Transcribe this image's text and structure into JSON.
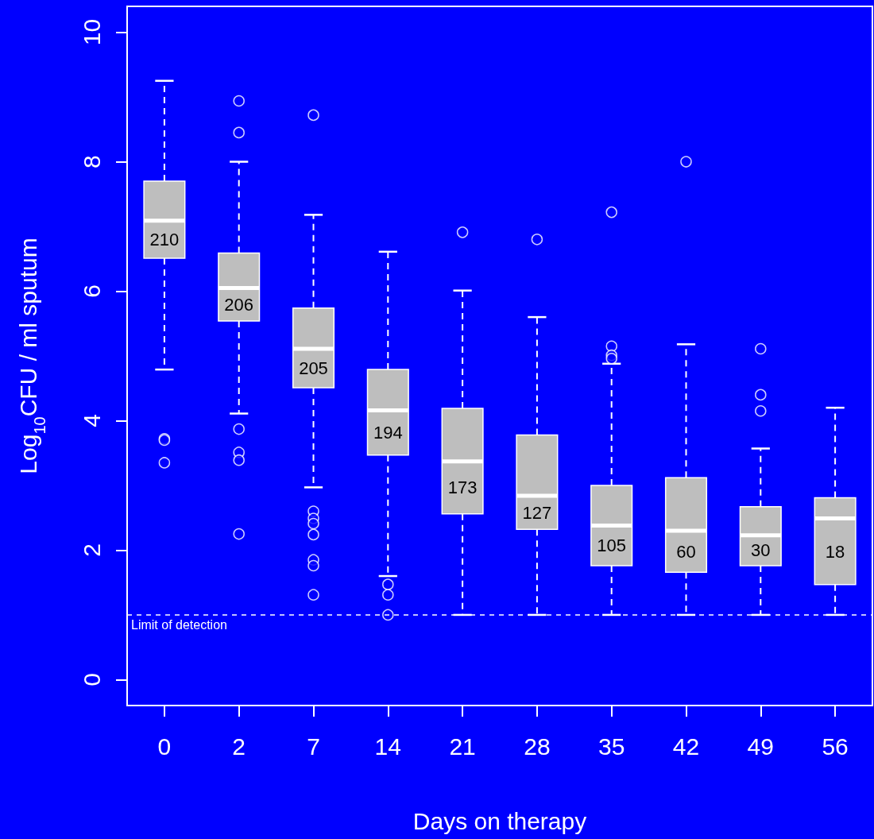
{
  "chart_data": {
    "type": "box",
    "xlabel": "Days on therapy",
    "ylabel": "Log$_{10}$CFU / ml sputum",
    "categories": [
      "0",
      "2",
      "7",
      "14",
      "21",
      "28",
      "35",
      "42",
      "49",
      "56"
    ],
    "color": "#bebebe",
    "boxes": [
      {
        "low": 4.79,
        "q1": 6.51,
        "median": 7.09,
        "q3": 7.7,
        "high": 9.25,
        "outliers": [
          3.72,
          3.7,
          3.35
        ]
      },
      {
        "low": 4.11,
        "q1": 5.54,
        "median": 6.05,
        "q3": 6.59,
        "high": 8.0,
        "outliers": [
          8.94,
          8.45,
          3.87,
          3.51,
          3.39,
          2.25
        ]
      },
      {
        "low": 2.97,
        "q1": 4.51,
        "median": 5.11,
        "q3": 5.74,
        "high": 7.18,
        "outliers": [
          8.72,
          2.6,
          2.49,
          2.41,
          2.24,
          1.85,
          1.76,
          1.31
        ]
      },
      {
        "low": 1.6,
        "q1": 3.47,
        "median": 4.16,
        "q3": 4.79,
        "high": 6.61,
        "outliers": [
          1.47,
          1.31,
          1.0
        ]
      },
      {
        "low": 1.0,
        "q1": 2.56,
        "median": 3.37,
        "q3": 4.19,
        "high": 6.01,
        "outliers": [
          6.91
        ]
      },
      {
        "low": 1.0,
        "q1": 2.32,
        "median": 2.84,
        "q3": 3.78,
        "high": 5.6,
        "outliers": [
          6.8
        ]
      },
      {
        "low": 1.0,
        "q1": 1.76,
        "median": 2.38,
        "q3": 3.0,
        "high": 4.88,
        "outliers": [
          7.22,
          5.15,
          5.01,
          4.96
        ]
      },
      {
        "low": 1.0,
        "q1": 1.66,
        "median": 2.3,
        "q3": 3.12,
        "high": 5.18,
        "outliers": [
          8.0
        ]
      },
      {
        "low": 1.0,
        "q1": 1.76,
        "median": 2.23,
        "q3": 2.67,
        "high": 3.57,
        "outliers": [
          5.11,
          4.4,
          4.15
        ]
      },
      {
        "low": 1.0,
        "q1": 1.47,
        "median": 2.49,
        "q3": 2.81,
        "high": 4.2
      }
    ],
    "ylim": [
      -0.4,
      10.4
    ],
    "yticks": [
      0,
      2,
      4,
      6,
      8,
      10
    ],
    "ref_lines": [
      {
        "axis": "y",
        "value": 1,
        "label": "Limit of detection",
        "color": "#ffffff",
        "line_style": "dashed"
      }
    ],
    "annotations": [
      "210",
      "206",
      "205",
      "194",
      "173",
      "127",
      "105",
      "60",
      "30",
      "18"
    ]
  }
}
